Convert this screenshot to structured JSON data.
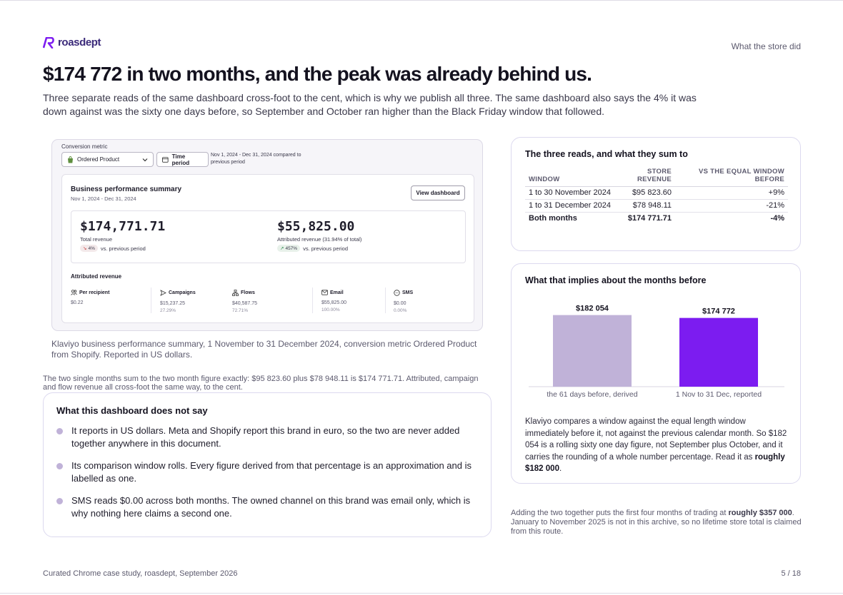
{
  "brand": {
    "name": "roasdept",
    "accent": "#7c1cf0"
  },
  "section_label": "What the store did",
  "headline": "$174 772 in two months, and the peak was already behind us.",
  "lede": "Three separate reads of the same dashboard cross-foot to the cent, which is why we publish all three. The same dashboard also says the 4% it was down against was the sixty one days before, so September and October ran higher than the Black Friday window that followed.",
  "dashboard": {
    "conversion_label": "Conversion metric",
    "metric_value": "Ordered Product",
    "period_button": "Time period",
    "date_info": "Nov 1, 2024 - Dec 31, 2024 compared to previous period",
    "summary_title": "Business performance summary",
    "summary_dates": "Nov 1, 2024 - Dec 31, 2024",
    "view_button": "View dashboard",
    "total": {
      "value": "$174,771.71",
      "label": "Total revenue",
      "change": "4%",
      "suffix": "vs. previous period"
    },
    "attributed": {
      "value": "$55,825.00",
      "label": "Attributed revenue (31.94% of total)",
      "change": "457%",
      "suffix": "vs. previous period"
    },
    "attributed_title": "Attributed revenue",
    "columns": [
      {
        "label": "Per recipient",
        "icon": "users-icon",
        "value": "$0.22",
        "pct": ""
      },
      {
        "label": "Campaigns",
        "icon": "send-icon",
        "value": "$15,237.25",
        "pct": "27.29%"
      },
      {
        "label": "Flows",
        "icon": "flow-icon",
        "value": "$40,587.75",
        "pct": "72.71%"
      },
      {
        "label": "Email",
        "icon": "mail-icon",
        "value": "$55,825.00",
        "pct": "100.00%"
      },
      {
        "label": "SMS",
        "icon": "sms-icon",
        "value": "$0.00",
        "pct": "0.00%"
      }
    ]
  },
  "caption": "Klaviyo business performance summary, 1 November to 31 December 2024, conversion metric Ordered Product from Shopify. Reported in US dollars.",
  "crossfoot": "The two single months sum to the two month figure exactly: $95 823.60 plus $78 948.11 is $174 771.71. Attributed, campaign and flow revenue all cross-foot the same way, to the cent.",
  "caveats": {
    "title": "What this dashboard does not say",
    "items": [
      "It reports in US dollars. Meta and Shopify report this brand in euro, so the two are never added together anywhere in this document.",
      "Its comparison window rolls. Every figure derived from that percentage is an approximation and is labelled as one.",
      "SMS reads $0.00 across both months. The owned channel on this brand was email only, which is why nothing here claims a second one."
    ]
  },
  "reads": {
    "title": "The three reads, and what they sum to",
    "headers": [
      "Window",
      "Store revenue",
      "vs the equal window before"
    ],
    "rows": [
      {
        "window": "1 to 30 November 2024",
        "revenue": "$95 823.60",
        "change": "+9%"
      },
      {
        "window": "1 to 31 December 2024",
        "revenue": "$78 948.11",
        "change": "-21%"
      },
      {
        "window": "Both months",
        "revenue": "$174 771.71",
        "change": "-4%"
      }
    ]
  },
  "implied": {
    "title": "What that implies about the months before",
    "note_main": "Klaviyo compares a window against the equal length window immediately before it, not against the previous calendar month. So $182 054 is a rolling sixty one day figure, not September plus October, and it carries the rounding of a whole number percentage. Read it as",
    "note_bold": "roughly $182 000",
    "note_end": "."
  },
  "chart_data": {
    "type": "bar",
    "categories": [
      "the 61 days before, derived",
      "1 Nov to 31 Dec, reported"
    ],
    "values": [
      182054,
      174772
    ],
    "value_labels": [
      "$182 054",
      "$174 772"
    ],
    "colors": [
      "#c0b2d8",
      "#7c1cf0"
    ],
    "title": "",
    "xlabel": "",
    "ylabel": "",
    "ylim": [
      0,
      190000
    ],
    "grid": false
  },
  "aside": {
    "pre": "Adding the two together puts the first four months of trading at",
    "bold": "roughly $357 000",
    "post": ". January to November 2025 is not in this archive, so no lifetime store total is claimed from this route."
  },
  "footer": {
    "left": "Curated Chrome case study, roasdept, September 2026",
    "right": "5 / 18"
  }
}
